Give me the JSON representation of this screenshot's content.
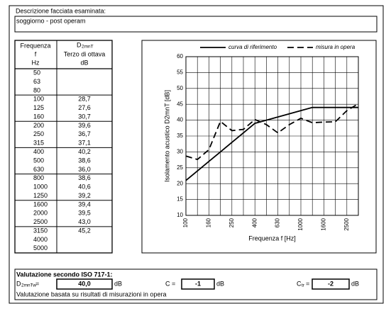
{
  "header": {
    "label": "Descrizione facciata esaminata:",
    "description": "soggiorno - post operam"
  },
  "table": {
    "header": {
      "freq": [
        "Frequenza",
        "f",
        "Hz"
      ],
      "value_symbol": {
        "main": "D",
        "sub": "2mnT"
      },
      "value": [
        "Terzo di ottava",
        "dB"
      ]
    },
    "rows": [
      [
        "50",
        null
      ],
      [
        "63",
        null
      ],
      [
        "80",
        null
      ],
      [
        "100",
        "28,7"
      ],
      [
        "125",
        "27,6"
      ],
      [
        "160",
        "30,7"
      ],
      [
        "200",
        "39,6"
      ],
      [
        "250",
        "36,7"
      ],
      [
        "315",
        "37,1"
      ],
      [
        "400",
        "40,2"
      ],
      [
        "500",
        "38,6"
      ],
      [
        "630",
        "36,0"
      ],
      [
        "800",
        "38,6"
      ],
      [
        "1000",
        "40,6"
      ],
      [
        "1250",
        "39,2"
      ],
      [
        "1600",
        "39,4"
      ],
      [
        "2000",
        "39,5"
      ],
      [
        "2500",
        "43,0"
      ],
      [
        "3150",
        "45,2"
      ],
      [
        "4000",
        null
      ],
      [
        "5000",
        null
      ]
    ]
  },
  "chart_data": {
    "type": "line",
    "x_label": "Frequenza f [Hz]",
    "y_label": "Isolamento acustico D2mnT [dB]",
    "categories": [
      "100",
      null,
      "160",
      null,
      "250",
      null,
      "400",
      null,
      "630",
      null,
      "1000",
      null,
      "1600",
      null,
      "2500",
      null
    ],
    "series": [
      {
        "name": "curva di riferimento",
        "color": "#000000",
        "dashed": false,
        "values": [
          21,
          24,
          27,
          30,
          33,
          36,
          39,
          40,
          41,
          42,
          43,
          44,
          44,
          44,
          44,
          44
        ]
      },
      {
        "name": "misura in opera",
        "color": "#000000",
        "dashed": true,
        "values": [
          28.7,
          27.6,
          30.7,
          39.6,
          36.7,
          37.1,
          40.2,
          38.6,
          36.0,
          38.6,
          40.6,
          39.2,
          39.4,
          39.5,
          43.0,
          45.2
        ]
      }
    ],
    "ylim": [
      10,
      60
    ],
    "yticks": [
      10,
      15,
      20,
      25,
      30,
      35,
      40,
      45,
      50,
      55,
      60
    ],
    "grid": true
  },
  "evaluation": {
    "title": "Valutazione secondo ISO 717-1:",
    "rw": {
      "main": "D",
      "sub": "2mnTw",
      "eq": "=",
      "value": "40,0",
      "unit": "dB"
    },
    "c": {
      "label": "C =",
      "value": "-1",
      "unit": "dB"
    },
    "ctr": {
      "main": "C",
      "sub": "tr",
      "eq": "=",
      "value": "-2",
      "unit": "dB"
    },
    "note": "Valutazione basata su risultati di misurazioni in opera"
  }
}
